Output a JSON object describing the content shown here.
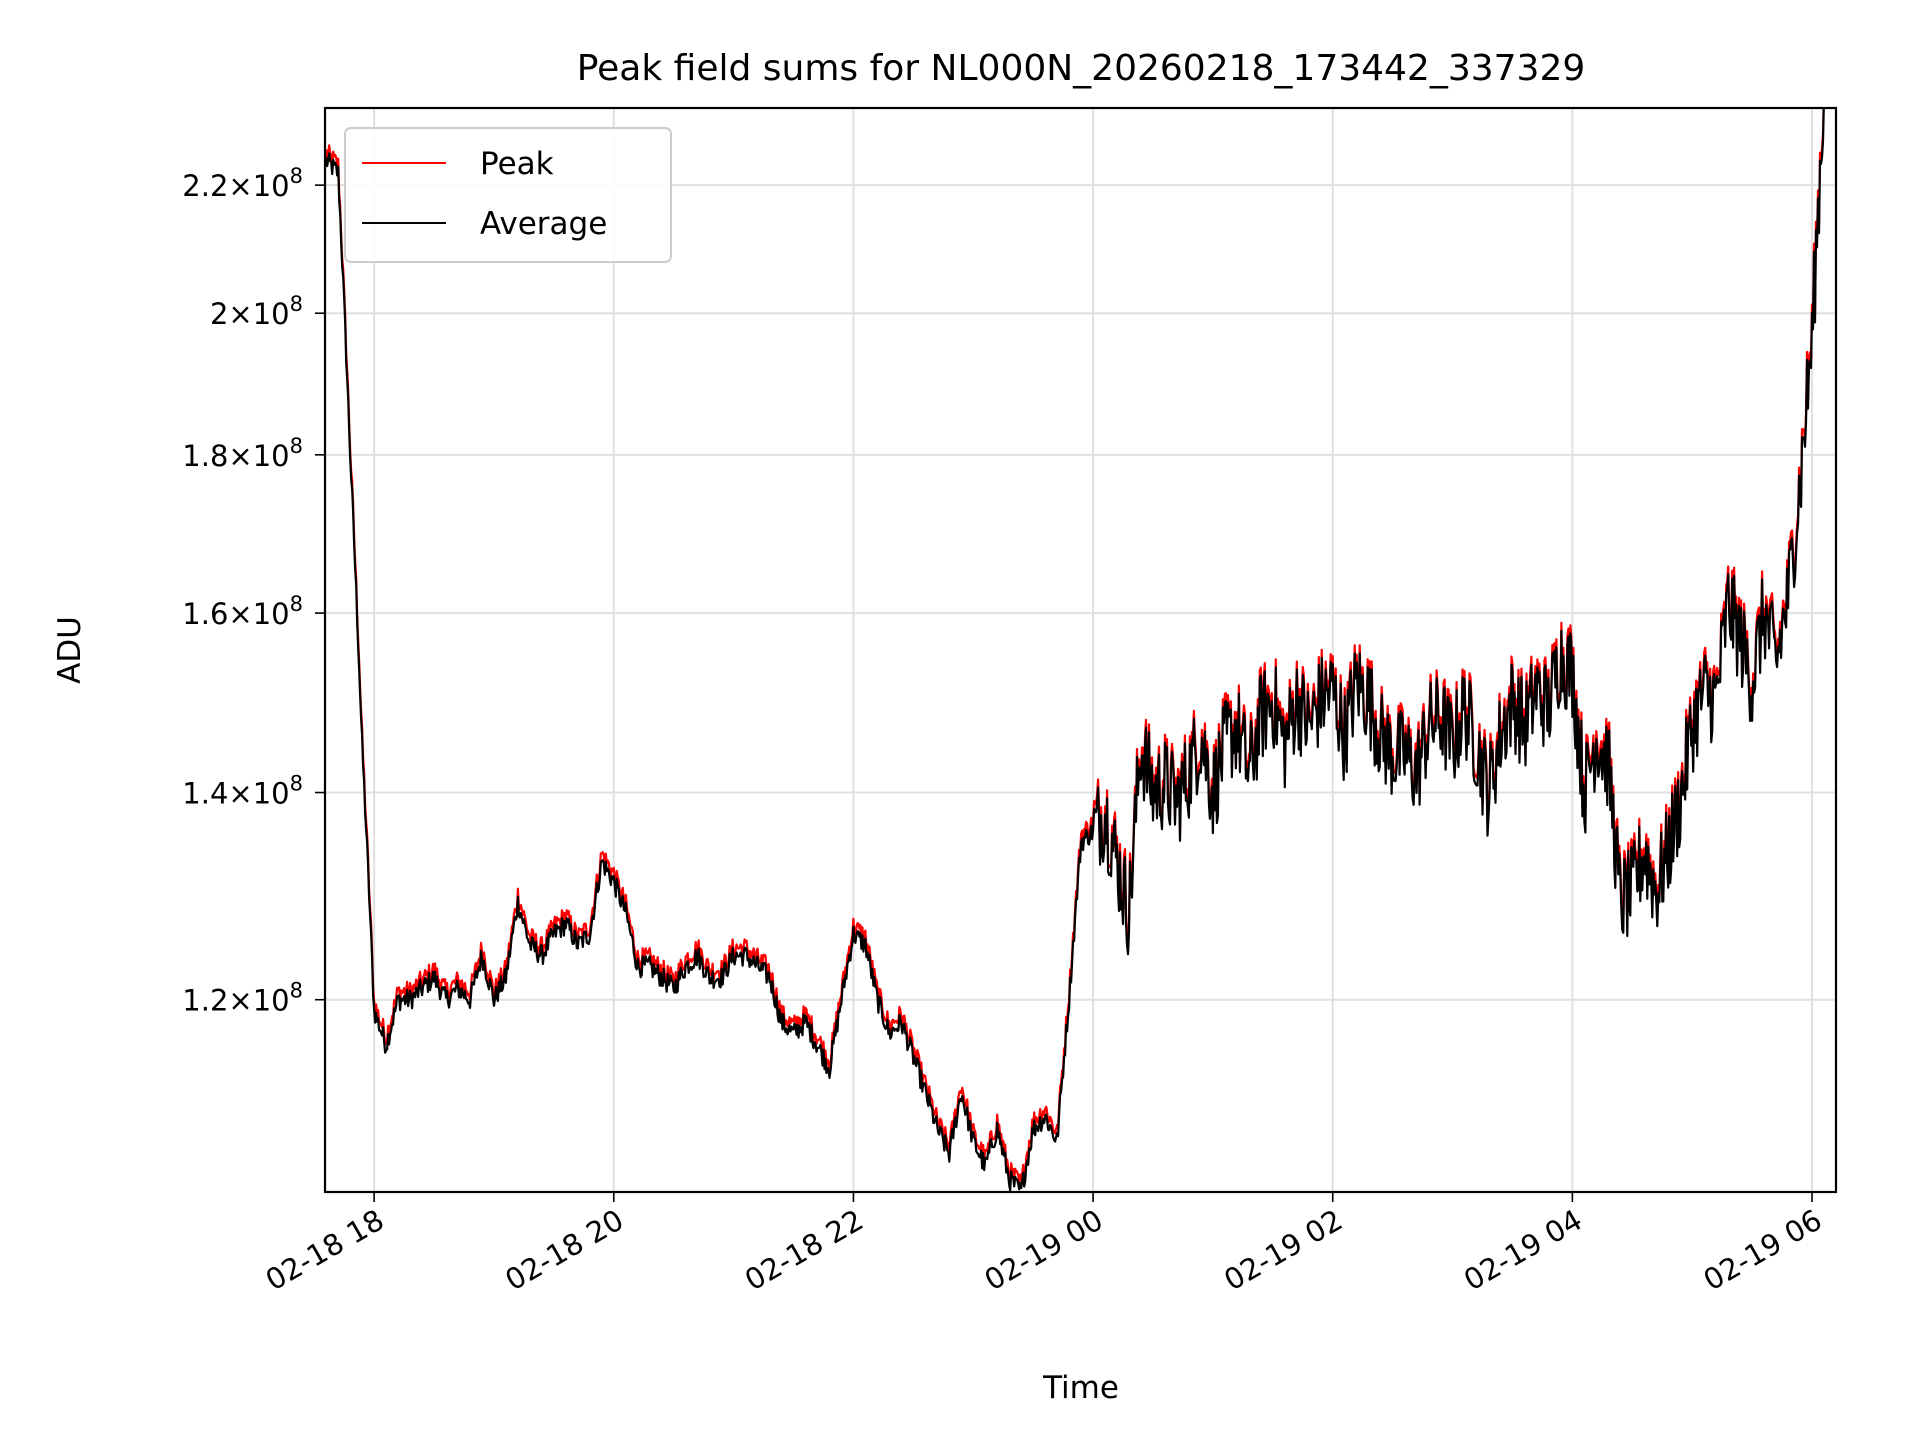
{
  "chart_data": {
    "type": "line",
    "title": "Peak field sums for NL000N_20260218_173442_337329",
    "xlabel": "Time",
    "ylabel": "ADU",
    "yscale": "log",
    "ylim": [
      104000000,
      233000000
    ],
    "xlim_hours": [
      -0.41,
      12.2
    ],
    "x_ticks": [
      {
        "hours": 0,
        "label": "02-18 18"
      },
      {
        "hours": 2,
        "label": "02-18 20"
      },
      {
        "hours": 4,
        "label": "02-18 22"
      },
      {
        "hours": 6,
        "label": "02-19 00"
      },
      {
        "hours": 8,
        "label": "02-19 02"
      },
      {
        "hours": 10,
        "label": "02-19 04"
      },
      {
        "hours": 12,
        "label": "02-19 06"
      }
    ],
    "y_ticks": [
      {
        "value": 120000000,
        "mantissa": "1.2",
        "exp": "8"
      },
      {
        "value": 140000000,
        "mantissa": "1.4",
        "exp": "8"
      },
      {
        "value": 160000000,
        "mantissa": "1.6",
        "exp": "8"
      },
      {
        "value": 180000000,
        "mantissa": "1.8",
        "exp": "8"
      },
      {
        "value": 200000000,
        "mantissa": "2",
        "exp": "8"
      },
      {
        "value": 220000000,
        "mantissa": "2.2",
        "exp": "8"
      }
    ],
    "grid": true,
    "legend_position": "top-left",
    "series": [
      {
        "name": "Peak",
        "color": "#ff0000"
      },
      {
        "name": "Average",
        "color": "#000000"
      }
    ],
    "x_hours_from_18h": [
      -0.4,
      -0.3,
      -0.2,
      -0.1,
      0.0,
      0.1,
      0.2,
      0.3,
      0.4,
      0.5,
      0.6,
      0.7,
      0.8,
      0.9,
      1.0,
      1.1,
      1.2,
      1.3,
      1.4,
      1.5,
      1.6,
      1.7,
      1.8,
      1.9,
      2.0,
      2.1,
      2.2,
      2.3,
      2.4,
      2.5,
      2.6,
      2.7,
      2.8,
      2.9,
      3.0,
      3.1,
      3.2,
      3.3,
      3.4,
      3.5,
      3.6,
      3.7,
      3.8,
      3.9,
      4.0,
      4.1,
      4.2,
      4.3,
      4.4,
      4.5,
      4.6,
      4.7,
      4.8,
      4.9,
      5.0,
      5.1,
      5.2,
      5.3,
      5.4,
      5.5,
      5.6,
      5.7,
      5.8,
      5.9,
      6.0,
      6.1,
      6.2,
      6.3,
      6.4,
      6.5,
      6.6,
      6.7,
      6.8,
      6.9,
      7.0,
      7.1,
      7.2,
      7.3,
      7.4,
      7.5,
      7.6,
      7.7,
      7.8,
      7.9,
      8.0,
      8.1,
      8.2,
      8.3,
      8.4,
      8.5,
      8.6,
      8.7,
      8.8,
      8.9,
      9.0,
      9.1,
      9.2,
      9.3,
      9.4,
      9.5,
      9.6,
      9.7,
      9.8,
      9.9,
      10.0,
      10.1,
      10.2,
      10.3,
      10.4,
      10.5,
      10.6,
      10.7,
      10.8,
      10.9,
      11.0,
      11.1,
      11.2,
      11.3,
      11.4,
      11.5,
      11.6,
      11.7,
      11.8,
      11.9,
      12.0,
      12.1
    ],
    "average_adu_millions": [
      224,
      222,
      180,
      145,
      119,
      116,
      120,
      120,
      121,
      122,
      120,
      121,
      120,
      124,
      120,
      122,
      129,
      125,
      124,
      126,
      127,
      125,
      126,
      133,
      131,
      128,
      123,
      123,
      122,
      121,
      123,
      124,
      122,
      122,
      124,
      124,
      123,
      122,
      118,
      117,
      118,
      116,
      114,
      120,
      126,
      125,
      120,
      117,
      118,
      115,
      112,
      109,
      107,
      112,
      108,
      106,
      109,
      105,
      104,
      109,
      110,
      108,
      120,
      135,
      136,
      138,
      133,
      128,
      145,
      140,
      141,
      139,
      142,
      146,
      140,
      145,
      147,
      142,
      148,
      150,
      145,
      150,
      147,
      150,
      151,
      146,
      152,
      150,
      146,
      144,
      144,
      142,
      147,
      148,
      145,
      149,
      145,
      140,
      146,
      150,
      147,
      151,
      149,
      155,
      153,
      140,
      146,
      143,
      129,
      130,
      134,
      130,
      134,
      139,
      147,
      151,
      150,
      161,
      157,
      152,
      160,
      154,
      162,
      176,
      196,
      235
    ],
    "peak_offset_fraction": 0.006
  }
}
